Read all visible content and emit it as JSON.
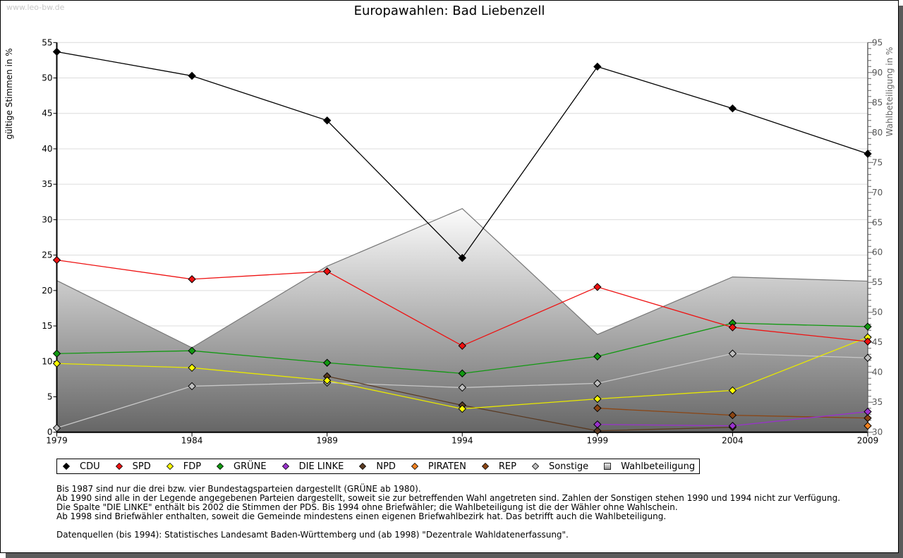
{
  "watermark": "www.leo-bw.de",
  "chart_data": {
    "type": "line",
    "title": "Europawahlen: Bad Liebenzell",
    "xlabel": "",
    "ylabel": "gültige Stimmen in %",
    "y2label": "Wahlbeteiligung in %",
    "x": [
      1979,
      1984,
      1989,
      1994,
      1999,
      2004,
      2009
    ],
    "xticks": [
      "1979",
      "1984",
      "1989",
      "1994",
      "1999",
      "2004",
      "2009"
    ],
    "ylim": [
      0,
      55
    ],
    "yticks": [
      0,
      5,
      10,
      15,
      20,
      25,
      30,
      35,
      40,
      45,
      50,
      55
    ],
    "y2lim": [
      30,
      95
    ],
    "y2ticks": [
      30,
      35,
      40,
      45,
      50,
      55,
      60,
      65,
      70,
      75,
      80,
      85,
      90,
      95
    ],
    "grid": true,
    "legend_position": "bottom",
    "area_series": {
      "name": "Wahlbeteiligung",
      "axis": "right",
      "values": [
        55.3,
        44.1,
        57.7,
        67.3,
        46.3,
        55.9,
        55.2
      ]
    },
    "series": [
      {
        "name": "Sonstige",
        "color": "#c0c0c0",
        "line": "#c8c8c8",
        "values": [
          0.6,
          6.5,
          7.0,
          6.3,
          6.9,
          11.1,
          10.5
        ]
      },
      {
        "name": "PIRATEN",
        "color": "#f08020",
        "line": "#f08020",
        "values": [
          null,
          null,
          null,
          null,
          null,
          null,
          0.9
        ]
      },
      {
        "name": "REP",
        "color": "#8b4513",
        "line": "#8b4513",
        "values": [
          null,
          null,
          null,
          null,
          3.4,
          2.4,
          2.0
        ]
      },
      {
        "name": "NPD",
        "color": "#5a3a22",
        "line": "#5a3a22",
        "values": [
          null,
          null,
          7.9,
          3.8,
          0.2,
          0.7,
          null
        ]
      },
      {
        "name": "DIE LINKE",
        "color": "#9932cc",
        "line": "#9932cc",
        "values": [
          null,
          null,
          null,
          null,
          1.1,
          0.9,
          2.9
        ]
      },
      {
        "name": "FDP",
        "color": "#ffff00",
        "line": "#e8e800",
        "values": [
          9.7,
          9.1,
          7.3,
          3.3,
          4.7,
          5.9,
          13.4
        ]
      },
      {
        "name": "GRÜNE",
        "color": "#119911",
        "line": "#119911",
        "values": [
          11.1,
          11.5,
          9.8,
          8.3,
          10.7,
          15.4,
          14.9
        ]
      },
      {
        "name": "SPD",
        "color": "#ee1111",
        "line": "#ee1111",
        "values": [
          24.3,
          21.6,
          22.7,
          12.2,
          20.5,
          14.8,
          12.8
        ]
      },
      {
        "name": "CDU",
        "color": "#000000",
        "line": "#000000",
        "values": [
          53.7,
          50.3,
          44.0,
          24.6,
          51.6,
          45.7,
          39.3
        ]
      }
    ],
    "legend": [
      {
        "label": "CDU",
        "color": "#000000",
        "shape": "diamond"
      },
      {
        "label": "SPD",
        "color": "#ee1111",
        "shape": "diamond"
      },
      {
        "label": "FDP",
        "color": "#ffff00",
        "shape": "diamond"
      },
      {
        "label": "GRÜNE",
        "color": "#119911",
        "shape": "diamond"
      },
      {
        "label": "DIE LINKE",
        "color": "#9932cc",
        "shape": "diamond"
      },
      {
        "label": "NPD",
        "color": "#5a3a22",
        "shape": "diamond"
      },
      {
        "label": "PIRATEN",
        "color": "#f08020",
        "shape": "diamond"
      },
      {
        "label": "REP",
        "color": "#8b4513",
        "shape": "diamond"
      },
      {
        "label": "Sonstige",
        "color": "#c0c0c0",
        "shape": "diamond"
      },
      {
        "label": "Wahlbeteiligung",
        "color": "#b0b0b0",
        "shape": "square"
      }
    ]
  },
  "notes": [
    "Bis 1987 sind nur die drei bzw. vier Bundestagsparteien dargestellt (GRÜNE ab 1980).",
    "Ab 1990 sind alle in der Legende angegebenen Parteien dargestellt, soweit sie zur betreffenden Wahl angetreten sind. Zahlen der Sonstigen stehen 1990 und 1994 nicht zur Verfügung.",
    "Die Spalte \"DIE LINKE\" enthält bis 2002 die Stimmen der PDS. Bis 1994 ohne Briefwähler; die Wahlbeteiligung ist die der Wähler ohne Wahlschein.",
    "Ab 1998 sind Briefwähler enthalten, soweit die Gemeinde mindestens einen eigenen Briefwahlbezirk hat. Das betrifft auch die Wahlbeteiligung."
  ],
  "source": "Datenquellen (bis 1994): Statistisches Landesamt Baden-Württemberg und (ab 1998) \"Dezentrale Wahldatenerfassung\"."
}
